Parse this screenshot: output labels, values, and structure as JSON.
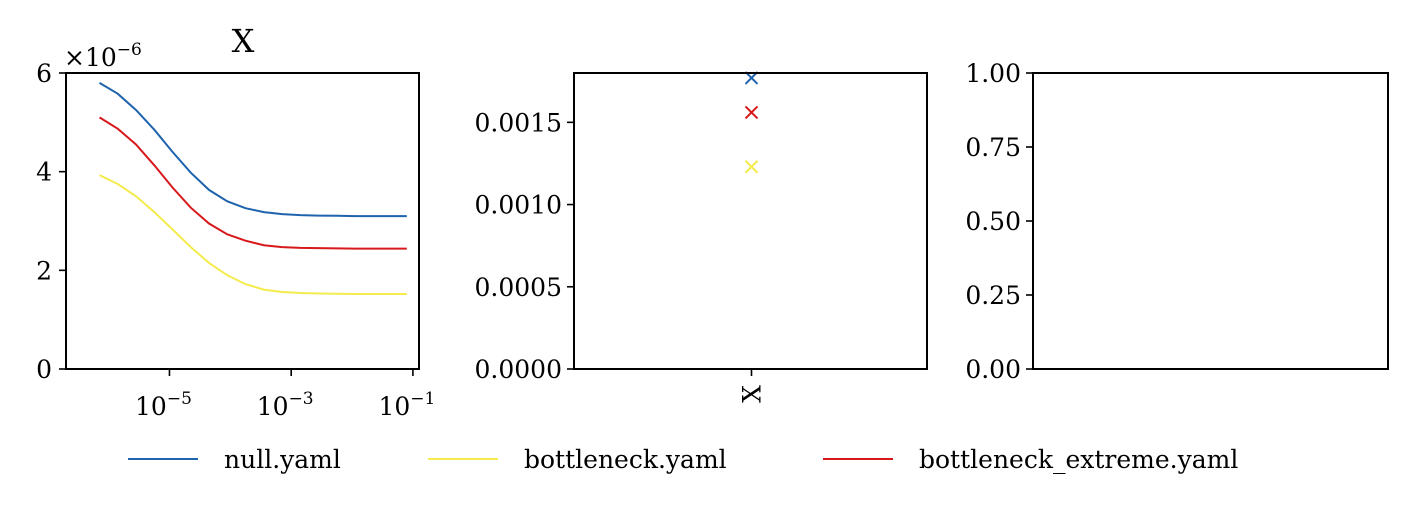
{
  "chart_data": [
    {
      "type": "line",
      "title": "X",
      "xscale": "log",
      "xlim_exp": [
        -6.7,
        -0.9
      ],
      "ylim": [
        0,
        6e-06
      ],
      "y_offset_text": "×10",
      "y_offset_exp": "−6",
      "yticks": [
        0,
        2,
        4,
        6
      ],
      "ytick_labels": [
        "0",
        "2",
        "4",
        "6"
      ],
      "xticks": [
        {
          "exp": -5,
          "base": "10",
          "sup": "−5"
        },
        {
          "exp": -3,
          "base": "10",
          "sup": "−3"
        },
        {
          "exp": -1,
          "base": "10",
          "sup": "−1"
        }
      ],
      "x_exp": [
        -6.15,
        -5.85,
        -5.55,
        -5.25,
        -4.95,
        -4.65,
        -4.35,
        -4.05,
        -3.75,
        -3.45,
        -3.15,
        -2.85,
        -2.55,
        -2.25,
        -1.95,
        -1.65,
        -1.35,
        -1.1
      ],
      "series": [
        {
          "name": "null.yaml",
          "color": "#1f63ad",
          "values": [
            5.8e-06,
            5.58e-06,
            5.25e-06,
            4.85e-06,
            4.4e-06,
            3.98e-06,
            3.63e-06,
            3.4e-06,
            3.26e-06,
            3.18e-06,
            3.14e-06,
            3.12e-06,
            3.11e-06,
            3.105e-06,
            3.1e-06,
            3.1e-06,
            3.1e-06,
            3.1e-06
          ]
        },
        {
          "name": "bottleneck.yaml",
          "color": "#f4eb4c",
          "values": [
            3.93e-06,
            3.75e-06,
            3.5e-06,
            3.18e-06,
            2.83e-06,
            2.47e-06,
            2.15e-06,
            1.9e-06,
            1.72e-06,
            1.61e-06,
            1.56e-06,
            1.54e-06,
            1.53e-06,
            1.525e-06,
            1.52e-06,
            1.52e-06,
            1.52e-06,
            1.52e-06
          ]
        },
        {
          "name": "bottleneck_extreme.yaml",
          "color": "#d7191c",
          "values": [
            5.1e-06,
            4.87e-06,
            4.55e-06,
            4.13e-06,
            3.68e-06,
            3.27e-06,
            2.95e-06,
            2.73e-06,
            2.6e-06,
            2.51e-06,
            2.47e-06,
            2.455e-06,
            2.45e-06,
            2.445e-06,
            2.44e-06,
            2.44e-06,
            2.44e-06,
            2.44e-06
          ]
        }
      ]
    },
    {
      "type": "scatter",
      "marker": "x",
      "categories": [
        "X"
      ],
      "ylim": [
        0,
        0.0018
      ],
      "yticks": [
        0,
        0.0005,
        0.001,
        0.0015
      ],
      "ytick_labels": [
        "0.0000",
        "0.0005",
        "0.0010",
        "0.0015"
      ],
      "series": [
        {
          "name": "null.yaml",
          "color": "#1f63ad",
          "values": [
            0.00177
          ]
        },
        {
          "name": "bottleneck.yaml",
          "color": "#f4eb4c",
          "values": [
            0.00123
          ]
        },
        {
          "name": "bottleneck_extreme.yaml",
          "color": "#d7191c",
          "values": [
            0.00156
          ]
        }
      ]
    },
    {
      "type": "line",
      "ylim": [
        0,
        1
      ],
      "yticks": [
        0,
        0.25,
        0.5,
        0.75,
        1
      ],
      "ytick_labels": [
        "0.00",
        "0.25",
        "0.50",
        "0.75",
        "1.00"
      ],
      "series": []
    }
  ],
  "legend": {
    "placement": "bottom",
    "entries": [
      {
        "label": "null.yaml",
        "color": "#1f63ad"
      },
      {
        "label": "bottleneck.yaml",
        "color": "#f4eb4c"
      },
      {
        "label": "bottleneck_extreme.yaml",
        "color": "#d7191c"
      }
    ]
  }
}
